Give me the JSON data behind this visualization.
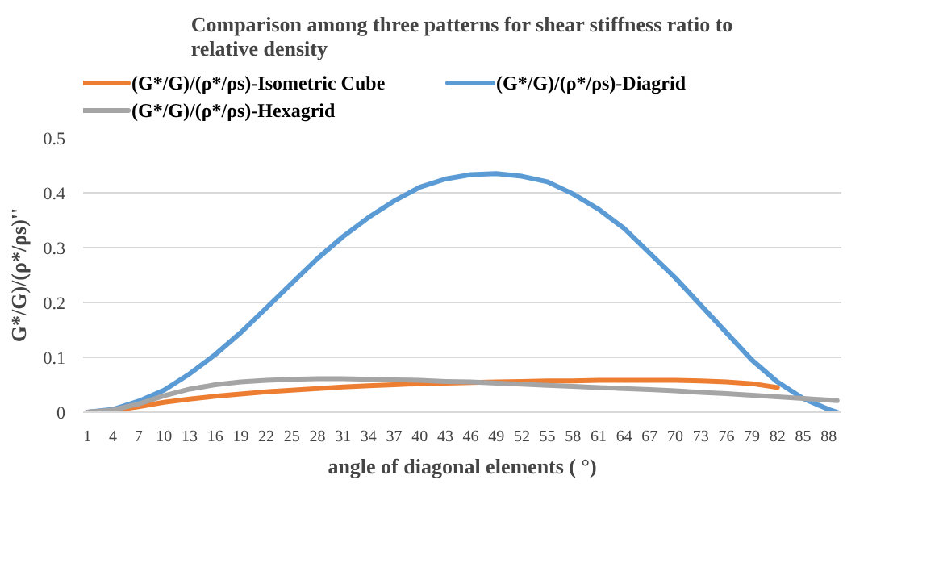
{
  "chart_data": {
    "type": "line",
    "title": "Comparison among three patterns for shear stiffness ratio to relative density",
    "xlabel": "angle of diagonal elements ( °)",
    "ylabel": "G*/G)/(ρ*/ρs)''",
    "x": [
      1,
      4,
      7,
      10,
      13,
      16,
      19,
      22,
      25,
      28,
      31,
      34,
      37,
      40,
      43,
      46,
      49,
      52,
      55,
      58,
      61,
      64,
      67,
      70,
      73,
      76,
      79,
      82,
      85,
      88,
      89
    ],
    "xlim": [
      0.5,
      89.5
    ],
    "xticks": [
      1,
      4,
      7,
      10,
      13,
      16,
      19,
      22,
      25,
      28,
      31,
      34,
      37,
      40,
      43,
      46,
      49,
      52,
      55,
      58,
      61,
      64,
      67,
      70,
      73,
      76,
      79,
      82,
      85,
      88
    ],
    "ylim": [
      0,
      0.5
    ],
    "yticks": [
      {
        "value": 0,
        "label": "0"
      },
      0.1,
      0.2,
      0.3,
      0.4,
      0.5
    ],
    "grid": "y",
    "legend": "top",
    "series": [
      {
        "name": "(G*/G)/(ρ*/ρs)-Isometric Cube",
        "color": "#ed7d31",
        "values": [
          0,
          0.003,
          0.01,
          0.018,
          0.024,
          0.029,
          0.033,
          0.037,
          0.04,
          0.043,
          0.046,
          0.048,
          0.05,
          0.052,
          0.053,
          0.054,
          0.055,
          0.056,
          0.057,
          0.057,
          0.058,
          0.058,
          0.058,
          0.058,
          0.057,
          0.055,
          0.052,
          0.045,
          null,
          null,
          null
        ]
      },
      {
        "name": "(G*/G)/(ρ*/ρs)-Diagrid",
        "color": "#5b9bd5",
        "values": [
          0,
          0.005,
          0.02,
          0.04,
          0.07,
          0.105,
          0.145,
          0.19,
          0.235,
          0.28,
          0.32,
          0.355,
          0.385,
          0.41,
          0.425,
          0.433,
          0.435,
          0.43,
          0.42,
          0.398,
          0.37,
          0.335,
          0.29,
          0.245,
          0.195,
          0.145,
          0.095,
          0.055,
          0.025,
          0.005,
          0
        ]
      },
      {
        "name": "(G*/G)/(ρ*/ρs)-Hexagrid",
        "color": "#a5a5a5",
        "values": [
          0,
          0.004,
          0.015,
          0.03,
          0.042,
          0.05,
          0.055,
          0.058,
          0.06,
          0.061,
          0.061,
          0.06,
          0.059,
          0.058,
          0.056,
          0.055,
          0.053,
          0.051,
          0.049,
          0.047,
          0.045,
          0.043,
          0.041,
          0.039,
          0.036,
          0.034,
          0.031,
          0.028,
          0.025,
          0.022,
          0.021
        ]
      }
    ]
  }
}
